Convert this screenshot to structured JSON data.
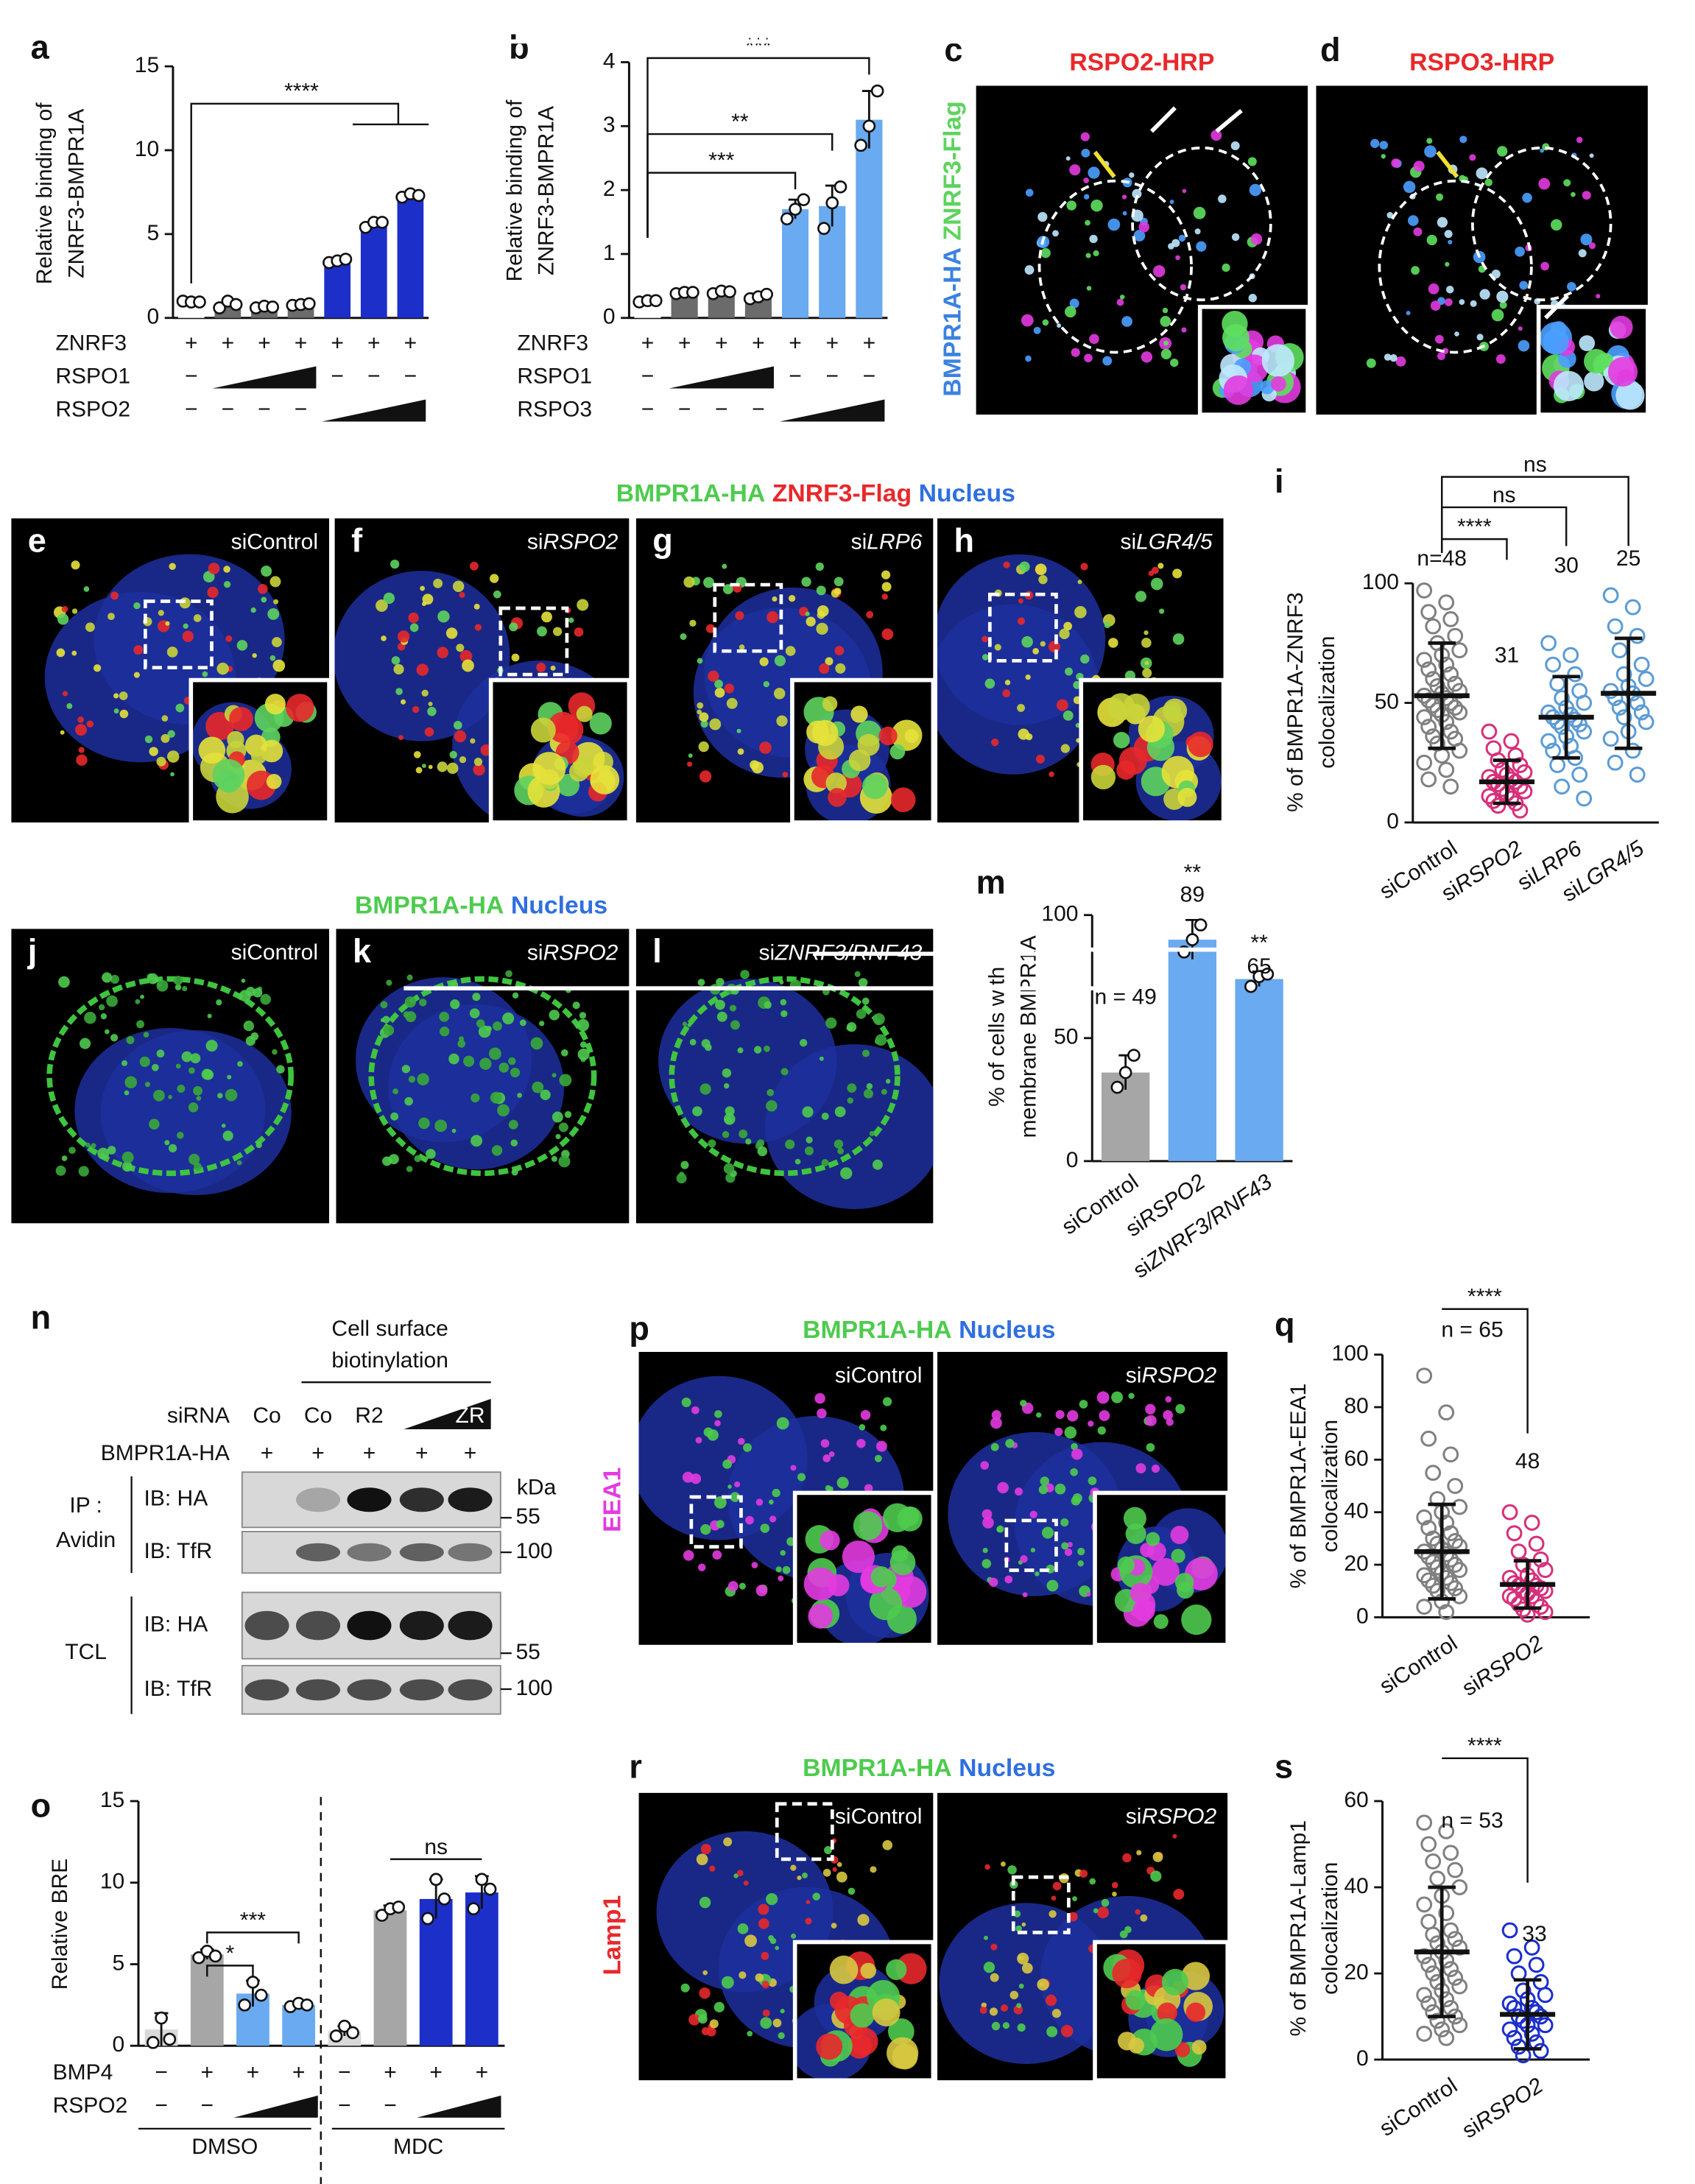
{
  "chart_data": [
    {
      "panel": "a",
      "type": "bar",
      "ylabel": [
        "Relative binding of",
        "ZNRF3-BMPR1A"
      ],
      "ylim": [
        0,
        15
      ],
      "yticks": [
        0,
        5,
        10,
        15
      ],
      "values": [
        0.95,
        0.8,
        0.65,
        0.8,
        3.4,
        5.6,
        7.3
      ],
      "points": [
        [
          1,
          0.95,
          0.95
        ],
        [
          0.6,
          1.0,
          0.8
        ],
        [
          0.6,
          0.7,
          0.65
        ],
        [
          0.75,
          0.8,
          0.85
        ],
        [
          3.3,
          3.4,
          3.5
        ],
        [
          5.4,
          5.7,
          5.7
        ],
        [
          7.2,
          7.4,
          7.3
        ]
      ],
      "colors": [
        "#ffffff",
        "#6b6b6b",
        "#6b6b6b",
        "#6b6b6b",
        "#1c2fc9",
        "#1c2fc9",
        "#1c2fc9"
      ],
      "conditions": [
        {
          "label": "ZNRF3",
          "marks": [
            "+",
            "+",
            "+",
            "+",
            "+",
            "+",
            "+"
          ]
        },
        {
          "label": "RSPO1",
          "marks": [
            "−",
            null,
            null,
            null,
            "−",
            "−",
            "−"
          ]
        },
        {
          "label": "RSPO2",
          "marks": [
            "−",
            "−",
            "−",
            "−",
            null,
            null,
            null
          ]
        }
      ],
      "annotations": [
        "****"
      ]
    },
    {
      "panel": "b",
      "type": "bar",
      "ylabel": [
        "Relative binding of",
        "ZNRF3-BMPR1A"
      ],
      "ylim": [
        0,
        4
      ],
      "yticks": [
        0,
        1,
        2,
        3,
        4
      ],
      "values": [
        0.25,
        0.38,
        0.4,
        0.33,
        1.7,
        1.75,
        3.1
      ],
      "errors": [
        0.03,
        0.03,
        0.04,
        0.05,
        0.15,
        0.32,
        0.45
      ],
      "points": [
        [
          0.25,
          0.27,
          0.27
        ],
        [
          0.38,
          0.4,
          0.4
        ],
        [
          0.38,
          0.42,
          0.41
        ],
        [
          0.3,
          0.33,
          0.37
        ],
        [
          1.55,
          1.7,
          1.85
        ],
        [
          1.4,
          1.8,
          2.05
        ],
        [
          2.7,
          3.0,
          3.55
        ]
      ],
      "colors": [
        "#ffffff",
        "#6b6b6b",
        "#6b6b6b",
        "#6b6b6b",
        "#6aaaf0",
        "#6aaaf0",
        "#6aaaf0"
      ],
      "conditions": [
        {
          "label": "ZNRF3",
          "marks": [
            "+",
            "+",
            "+",
            "+",
            "+",
            "+",
            "+"
          ]
        },
        {
          "label": "RSPO1",
          "marks": [
            "−",
            null,
            null,
            null,
            "−",
            "−",
            "−"
          ]
        },
        {
          "label": "RSPO3",
          "marks": [
            "−",
            "−",
            "−",
            "−",
            null,
            null,
            null
          ]
        }
      ],
      "annotations": [
        "***",
        "**",
        "***"
      ]
    },
    {
      "panel": "m",
      "type": "bar",
      "ylabel": [
        "% of cells with",
        "membrane BMPR1A"
      ],
      "ylim": [
        0,
        100
      ],
      "yticks": [
        0,
        50,
        100
      ],
      "categories": [
        "siControl",
        "siRSPO2",
        "siZNRF3/RNF43"
      ],
      "values": [
        36,
        90,
        74
      ],
      "errors": [
        7,
        8,
        3
      ],
      "points": [
        [
          30,
          36,
          43
        ],
        [
          85,
          90,
          96
        ],
        [
          71,
          75,
          76
        ]
      ],
      "colors": [
        "#a6a6a6",
        "#6aaaf0",
        "#6aaaf0"
      ],
      "n_labels": [
        "n = 49",
        "89",
        "65"
      ],
      "annotations": [
        "**",
        "**"
      ]
    },
    {
      "panel": "o",
      "type": "bar",
      "ylabel": [
        "Relative BRE"
      ],
      "ylim": [
        0,
        15
      ],
      "yticks": [
        0,
        5,
        10,
        15
      ],
      "values": [
        1.0,
        5.6,
        3.2,
        2.5,
        0.9,
        8.3,
        9.0,
        9.4
      ],
      "errors": [
        1.0,
        0.3,
        0.8,
        0.15,
        0.3,
        0.3,
        1.2,
        1.0
      ],
      "points": [
        [
          0.2,
          1.7,
          0.4
        ],
        [
          5.4,
          5.8,
          5.5
        ],
        [
          2.5,
          3.9,
          3.1
        ],
        [
          2.4,
          2.6,
          2.5
        ],
        [
          0.6,
          1.2,
          0.8
        ],
        [
          8.0,
          8.4,
          8.5
        ],
        [
          7.8,
          10.2,
          9.0
        ],
        [
          8.4,
          10.2,
          9.6
        ]
      ],
      "colors": [
        "#d9d9d9",
        "#a6a6a6",
        "#6aaaf0",
        "#6aaaf0",
        "#d9d9d9",
        "#a6a6a6",
        "#1c2fc9",
        "#1c2fc9"
      ],
      "conditions": [
        {
          "label": "BMP4",
          "marks": [
            "−",
            "+",
            "+",
            "+",
            "−",
            "+",
            "+",
            "+"
          ]
        },
        {
          "label": "RSPO2",
          "marks": [
            "−",
            "−",
            null,
            null,
            "−",
            "−",
            null,
            null
          ]
        }
      ],
      "groups": [
        "DMSO",
        "MDC"
      ],
      "annotations": [
        "***",
        "*",
        "ns"
      ]
    },
    {
      "panel": "i",
      "type": "dot",
      "ylabel": [
        "% of BMPR1A-ZNRF3",
        "colocalization"
      ],
      "ylim": [
        0,
        100
      ],
      "yticks": [
        0,
        50,
        100
      ],
      "categories": [
        "siControl",
        "siRSPO2",
        "siLRP6",
        "siLGR4/5"
      ],
      "colors": [
        "#808080",
        "#d6307a",
        "#5b9bd5",
        "#5b9bd5"
      ],
      "points": [
        [
          97,
          92,
          88,
          85,
          82,
          78,
          75,
          72,
          70,
          68,
          66,
          64,
          62,
          60,
          58,
          57,
          55,
          54,
          53,
          52,
          51,
          50,
          49,
          48,
          47,
          46,
          45,
          44,
          42,
          40,
          38,
          36,
          35,
          33,
          30,
          28,
          25,
          22,
          18,
          15
        ],
        [
          38,
          34,
          31,
          28,
          26,
          24,
          22,
          21,
          20,
          19,
          18,
          17,
          17,
          16,
          15,
          14,
          13,
          12,
          11,
          10,
          9,
          8,
          7,
          5
        ],
        [
          75,
          70,
          66,
          62,
          58,
          55,
          52,
          50,
          48,
          46,
          45,
          44,
          43,
          42,
          41,
          40,
          38,
          36,
          34,
          32,
          30,
          27,
          24,
          20,
          15,
          10
        ],
        [
          95,
          90,
          82,
          78,
          72,
          66,
          62,
          60,
          57,
          55,
          54,
          52,
          50,
          48,
          46,
          44,
          42,
          38,
          35,
          30,
          25,
          20
        ]
      ],
      "means": [
        53,
        17,
        44,
        54
      ],
      "sds": [
        22,
        9,
        17,
        23
      ],
      "n_labels": [
        "n=48",
        "31",
        "30",
        "25"
      ],
      "annotations": [
        "ns",
        "ns",
        "****"
      ]
    },
    {
      "panel": "q",
      "type": "dot",
      "ylabel": [
        "% of BMPR1A-EEA1",
        "colocalization"
      ],
      "ylim": [
        0,
        100
      ],
      "yticks": [
        0,
        20,
        40,
        60,
        80,
        100
      ],
      "categories": [
        "siControl",
        "siRSPO2"
      ],
      "colors": [
        "#808080",
        "#d6307a"
      ],
      "points": [
        [
          92,
          78,
          68,
          62,
          55,
          50,
          45,
          42,
          40,
          38,
          36,
          34,
          32,
          30,
          29,
          28,
          27,
          26,
          25,
          24,
          23,
          22,
          21,
          20,
          19,
          18,
          17,
          16,
          15,
          14,
          13,
          12,
          11,
          10,
          8,
          6,
          4,
          2
        ],
        [
          40,
          36,
          32,
          28,
          25,
          22,
          20,
          18,
          16,
          15,
          14,
          13,
          12,
          12,
          11,
          10,
          10,
          9,
          8,
          8,
          7,
          6,
          5,
          4,
          3,
          2,
          1
        ]
      ],
      "means": [
        25,
        12.5
      ],
      "sds": [
        18,
        9
      ],
      "n_labels": [
        "n = 65",
        "48"
      ],
      "annotations": [
        "****"
      ]
    },
    {
      "panel": "s",
      "type": "dot",
      "ylabel": [
        "% of BMPR1A-Lamp1",
        "colocalization"
      ],
      "ylim": [
        0,
        60
      ],
      "yticks": [
        0,
        20,
        40,
        60
      ],
      "categories": [
        "siControl",
        "siRSPO2"
      ],
      "colors": [
        "#808080",
        "#1c2fc9"
      ],
      "points": [
        [
          55,
          53,
          50,
          48,
          46,
          44,
          42,
          40,
          38,
          36,
          34,
          32,
          30,
          29,
          28,
          27,
          26,
          25,
          24,
          23,
          22,
          21,
          20,
          19,
          18,
          17,
          16,
          15,
          14,
          13,
          12,
          11,
          10,
          9,
          8,
          7,
          6,
          5
        ],
        [
          30,
          26,
          24,
          22,
          20,
          18,
          16,
          15,
          14,
          13,
          12,
          12,
          11,
          10,
          10,
          9,
          8,
          8,
          7,
          6,
          5,
          4,
          3,
          2,
          1
        ]
      ],
      "means": [
        25,
        10.5
      ],
      "sds": [
        15,
        8
      ],
      "n_labels": [
        "n = 53",
        "33"
      ],
      "annotations": [
        "****"
      ]
    }
  ],
  "micrographs": [
    {
      "letter": "c",
      "title": "RSPO2-HRP"
    },
    {
      "letter": "d",
      "title": "RSPO3-HRP"
    },
    {
      "letter": "e",
      "label": "siControl"
    },
    {
      "letter": "f",
      "label": "siRSPO2"
    },
    {
      "letter": "g",
      "label": "siLRP6"
    },
    {
      "letter": "h",
      "label": "siLGR4/5"
    },
    {
      "letter": "j",
      "label": "siControl"
    },
    {
      "letter": "k",
      "label": "siRSPO2"
    },
    {
      "letter": "l",
      "label": "siZNRF3/RNF43"
    },
    {
      "letter": "p",
      "label": "siControl"
    },
    {
      "label": "siRSPO2"
    },
    {
      "letter": "r",
      "label": "siControl"
    },
    {
      "label": "siRSPO2"
    }
  ],
  "headers": [
    [
      "BMPR1A-HA",
      "ZNRF3-Flag"
    ],
    [
      "BMPR1A-HA",
      "ZNRF3-Flag",
      "Nucleus"
    ],
    [
      "BMPR1A-HA",
      "Nucleus"
    ],
    [
      "BMPR1A-HA",
      "Nucleus"
    ],
    [
      "BMPR1A-HA",
      "Nucleus"
    ]
  ],
  "side_labels": [
    "EEA1",
    "Lamp1"
  ],
  "blot": {
    "letter": "n",
    "title": [
      "Cell surface",
      "biotinylation"
    ],
    "rows": [
      {
        "label": "siRNA",
        "marks": [
          "Co",
          "Co",
          "R2",
          null,
          "ZR"
        ]
      },
      {
        "label": "BMPR1A-HA",
        "marks": [
          "+",
          "+",
          "+",
          "+",
          "+"
        ]
      }
    ],
    "ip": [
      "IP :",
      "Avidin"
    ],
    "tcl": "TCL",
    "ib": [
      "IB: HA",
      "IB: TfR",
      "IB: HA",
      "IB: TfR"
    ],
    "kda": "kDa",
    "mw": [
      "55",
      "100",
      "55",
      "100"
    ]
  }
}
